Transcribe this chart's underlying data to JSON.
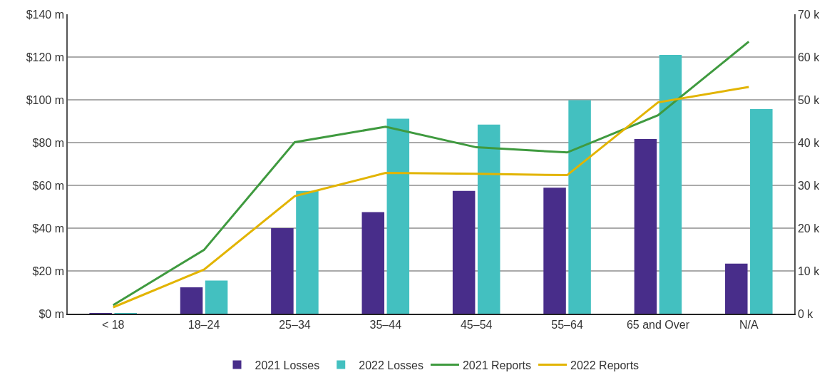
{
  "chart_data": {
    "type": "bar",
    "categories": [
      "< 18",
      "18–24",
      "25–34",
      "35–44",
      "45–54",
      "55–64",
      "65 and Over",
      "N/A"
    ],
    "series": [
      {
        "name": "2021 Losses",
        "color": "#482d8a",
        "values": [
          0.3,
          12.3,
          40.0,
          47.5,
          57.4,
          58.9,
          81.7,
          23.4
        ]
      },
      {
        "name": "2022 Losses",
        "color": "#43c0c0",
        "values": [
          0.3,
          15.5,
          57.4,
          91.2,
          88.4,
          99.8,
          121,
          95.7
        ]
      },
      {
        "name": "2021 Reports",
        "type": "line",
        "axis": "y2",
        "color": "#3f9a3f",
        "values": [
          2.0,
          14.9,
          40.1,
          43.7,
          38.9,
          37.7,
          46.4,
          63.6
        ]
      },
      {
        "name": "2022 Reports",
        "type": "line",
        "axis": "y2",
        "color": "#e2b400",
        "values": [
          1.5,
          10.3,
          27.5,
          32.9,
          32.7,
          32.4,
          49.4,
          53.0
        ]
      }
    ],
    "ylim": [
      0,
      140
    ],
    "yticks": [
      {
        "value": 0,
        "label": "$0 m"
      },
      {
        "value": 20,
        "label": "$20 m"
      },
      {
        "value": 40,
        "label": "$40 m"
      },
      {
        "value": 60,
        "label": "$60 m"
      },
      {
        "value": 80,
        "label": "$80 m"
      },
      {
        "value": 100,
        "label": "$100 m"
      },
      {
        "value": 120,
        "label": "$120 m"
      },
      {
        "value": 140,
        "label": "$140 m"
      }
    ],
    "y2lim": [
      0,
      70
    ],
    "y2ticks": [
      {
        "value": 0,
        "label": "0 k"
      },
      {
        "value": 10,
        "label": "10 k"
      },
      {
        "value": 20,
        "label": "20 k"
      },
      {
        "value": 30,
        "label": "30 k"
      },
      {
        "value": 40,
        "label": "40 k"
      },
      {
        "value": 50,
        "label": "50 k"
      },
      {
        "value": 60,
        "label": "60 k"
      },
      {
        "value": 70,
        "label": "70 k"
      }
    ],
    "grid": "y",
    "legend": "bottom",
    "marker": "none",
    "line_style": "solid"
  }
}
